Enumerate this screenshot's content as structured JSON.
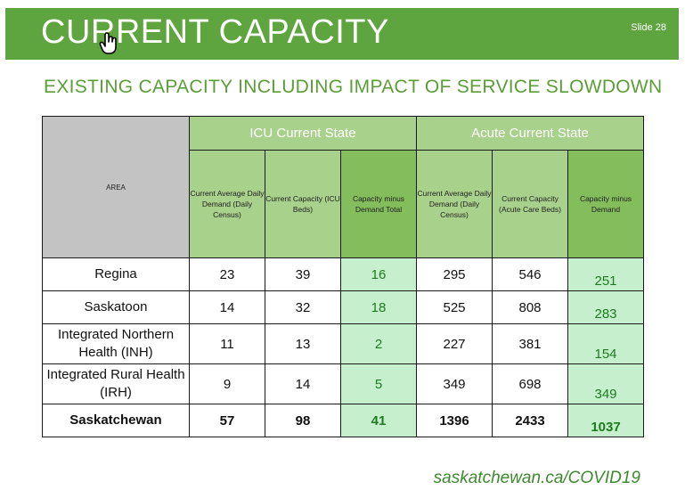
{
  "slide": {
    "title": "CURRENT CAPACITY",
    "slide_number": "Slide 28",
    "subtitle": "EXISTING CAPACITY INCLUDING IMPACT OF SERVICE SLOWDOWN",
    "footer": "saskatchewan.ca/COVID19",
    "cursor_icon": "hand-pointer-icon"
  },
  "table": {
    "area_header": "AREA",
    "icu_header": "ICU Current State",
    "acute_header": "Acute Current State",
    "columns": [
      "Current Average Daily Demand (Daily Census)",
      "Current Capacity (ICU Beds)",
      "Capacity minus Demand Total",
      "Current Average Daily Demand (Daily Census)",
      "Current Capacity (Acute Care Beds)",
      "Capacity minus Demand"
    ],
    "rows": [
      {
        "area": "Regina",
        "icu_demand": "23",
        "icu_capacity": "39",
        "icu_diff": "16",
        "acute_demand": "295",
        "acute_capacity": "546",
        "acute_diff": "251"
      },
      {
        "area": "Saskatoon",
        "icu_demand": "14",
        "icu_capacity": "32",
        "icu_diff": "18",
        "acute_demand": "525",
        "acute_capacity": "808",
        "acute_diff": "283"
      },
      {
        "area": "Integrated Northern Health (INH)",
        "icu_demand": "11",
        "icu_capacity": "13",
        "icu_diff": "2",
        "acute_demand": "227",
        "acute_capacity": "381",
        "acute_diff": "154"
      },
      {
        "area": "Integrated Rural Health (IRH)",
        "icu_demand": "9",
        "icu_capacity": "14",
        "icu_diff": "5",
        "acute_demand": "349",
        "acute_capacity": "698",
        "acute_diff": "349"
      }
    ],
    "total": {
      "area": "Saskatchewan",
      "icu_demand": "57",
      "icu_capacity": "98",
      "icu_diff": "41",
      "acute_demand": "1396",
      "acute_capacity": "2433",
      "acute_diff": "1037"
    }
  },
  "colors": {
    "header_green": "#5fa53f",
    "subtitle_green": "#5a9e37",
    "column_header_green": "#a8d18c",
    "diff_header_green": "#83bd5c",
    "diff_cell_green": "#c6efce",
    "area_header_gray": "#c3c3c3"
  }
}
